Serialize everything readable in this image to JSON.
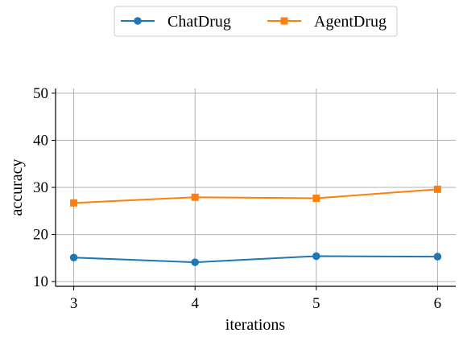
{
  "chart_data": {
    "type": "line",
    "x": [
      3,
      4,
      5,
      6
    ],
    "series": [
      {
        "name": "ChatDrug",
        "values": [
          15.1,
          14.1,
          15.4,
          15.3
        ],
        "color": "#1f77b4",
        "marker": "circle"
      },
      {
        "name": "AgentDrug",
        "values": [
          26.7,
          27.9,
          27.7,
          29.6
        ],
        "color": "#ff7f0e",
        "marker": "square"
      }
    ],
    "xlabel": "iterations",
    "ylabel": "accuracy",
    "xticks": [
      "3",
      "4",
      "5",
      "6"
    ],
    "yticks": [
      "10",
      "20",
      "30",
      "40",
      "50"
    ],
    "xlim": [
      2.85,
      6.15
    ],
    "ylim": [
      9,
      51
    ],
    "grid": true,
    "legend": "top-center"
  }
}
